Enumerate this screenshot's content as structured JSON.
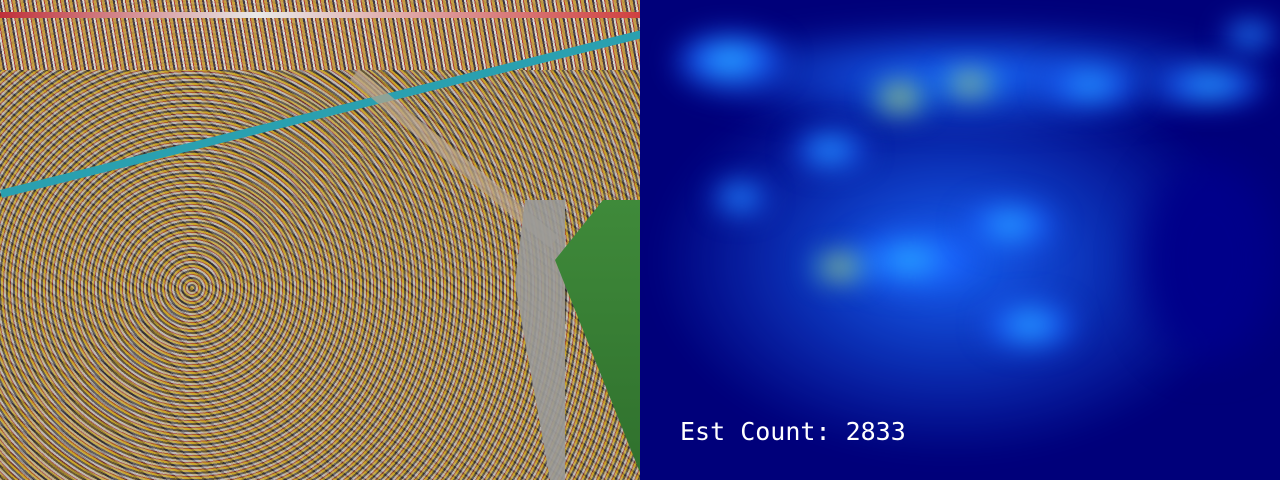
{
  "overlay": {
    "count_label": "Est Count: 2833"
  },
  "colors": {
    "density_low": "#00007a",
    "density_mid": "#1a6cff",
    "density_high": "#e03010"
  }
}
